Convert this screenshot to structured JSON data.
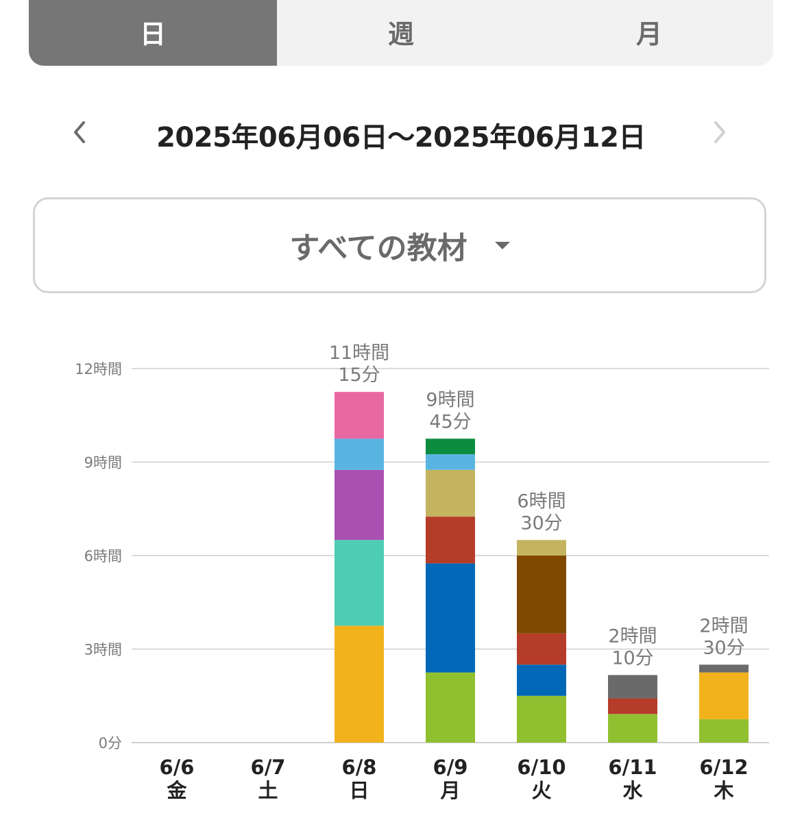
{
  "tabs": [
    {
      "label": "日",
      "active": true
    },
    {
      "label": "週",
      "active": false
    },
    {
      "label": "月",
      "active": false
    }
  ],
  "range": {
    "text": "2025年06月06日〜2025年06月12日"
  },
  "material_select": {
    "label": "すべての教材"
  },
  "colors": {
    "tab_active_bg": "#767676",
    "tab_bg": "#f2f2f2",
    "grid": "#cfcfcf"
  },
  "chart_data": {
    "type": "bar",
    "stacked": true,
    "y_unit": "hours",
    "ylim": [
      0,
      12
    ],
    "y_ticks": [
      {
        "value": 0,
        "label": "0分"
      },
      {
        "value": 3,
        "label": "3時間"
      },
      {
        "value": 6,
        "label": "6時間"
      },
      {
        "value": 9,
        "label": "9時間"
      },
      {
        "value": 12,
        "label": "12時間"
      }
    ],
    "grid": true,
    "categories": [
      {
        "date": "6/6",
        "weekday": "金"
      },
      {
        "date": "6/7",
        "weekday": "土"
      },
      {
        "date": "6/8",
        "weekday": "日"
      },
      {
        "date": "6/9",
        "weekday": "月"
      },
      {
        "date": "6/10",
        "weekday": "火"
      },
      {
        "date": "6/11",
        "weekday": "水"
      },
      {
        "date": "6/12",
        "weekday": "木"
      }
    ],
    "totals": [
      null,
      null,
      {
        "hours": "11時間",
        "minutes": "15分",
        "value": 11.25
      },
      {
        "hours": "9時間",
        "minutes": "45分",
        "value": 9.75
      },
      {
        "hours": "6時間",
        "minutes": "30分",
        "value": 6.5
      },
      {
        "hours": "2時間",
        "minutes": "10分",
        "value": 2.1667
      },
      {
        "hours": "2時間",
        "minutes": "30分",
        "value": 2.5
      }
    ],
    "stacks": [
      [],
      [],
      [
        {
          "color": "#f2b21c",
          "value": 3.75
        },
        {
          "color": "#4ccdb4",
          "value": 2.75
        },
        {
          "color": "#aa50b0",
          "value": 2.25
        },
        {
          "color": "#5ab4e2",
          "value": 1.0
        },
        {
          "color": "#e868a2",
          "value": 1.5
        }
      ],
      [
        {
          "color": "#90c030",
          "value": 2.25
        },
        {
          "color": "#0068b6",
          "value": 3.5
        },
        {
          "color": "#b63c2a",
          "value": 1.5
        },
        {
          "color": "#c4b460",
          "value": 1.5
        },
        {
          "color": "#5ab4e2",
          "value": 0.5
        },
        {
          "color": "#0c8c3e",
          "value": 0.5
        }
      ],
      [
        {
          "color": "#90c030",
          "value": 1.5
        },
        {
          "color": "#0068b6",
          "value": 1.0
        },
        {
          "color": "#b63c2a",
          "value": 1.0
        },
        {
          "color": "#804800",
          "value": 2.5
        },
        {
          "color": "#c4b460",
          "value": 0.5
        }
      ],
      [
        {
          "color": "#90c030",
          "value": 0.9167
        },
        {
          "color": "#b63c2a",
          "value": 0.5
        },
        {
          "color": "#6a6a6a",
          "value": 0.75
        }
      ],
      [
        {
          "color": "#90c030",
          "value": 0.75
        },
        {
          "color": "#f2b21c",
          "value": 1.5
        },
        {
          "color": "#6a6a6a",
          "value": 0.25
        }
      ]
    ]
  }
}
